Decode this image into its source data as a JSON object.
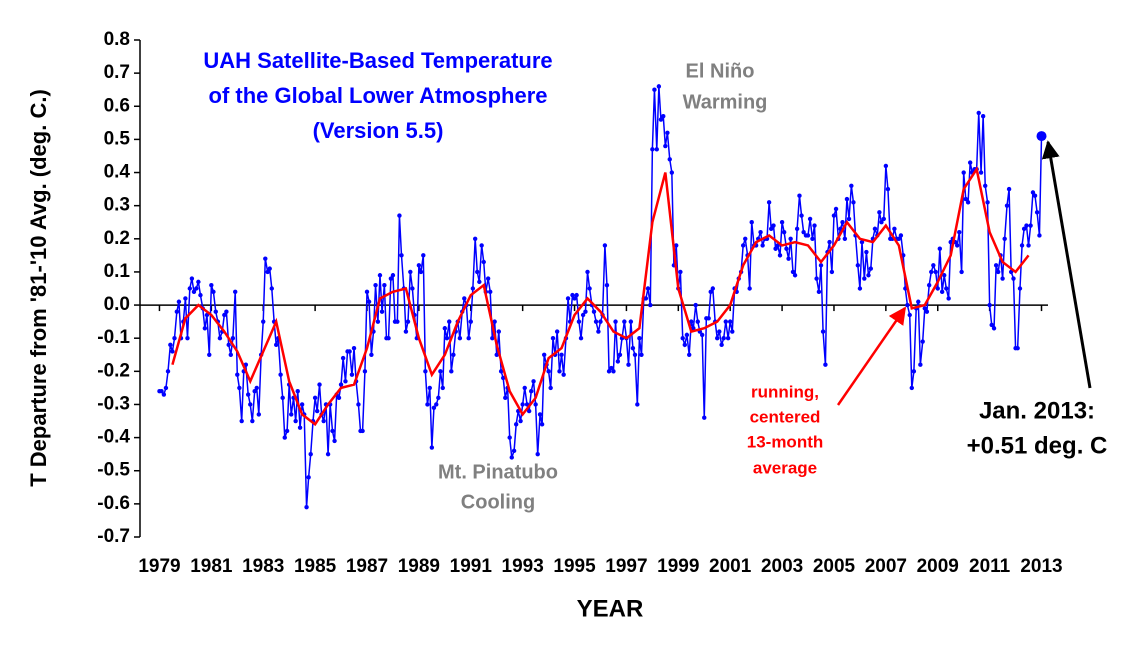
{
  "chart_data": {
    "type": "line",
    "title": [
      "UAH Satellite-Based Temperature",
      "of the Global Lower Atmosphere",
      "(Version 5.5)"
    ],
    "xlabel": "YEAR",
    "ylabel": "T Departure from '81-'10 Avg. (deg. C.)",
    "annotations": {
      "el_nino": [
        "El Niño",
        "Warming"
      ],
      "pinatubo": [
        "Mt. Pinatubo",
        "Cooling"
      ],
      "running": [
        "running,",
        "centered",
        "13-month",
        "average"
      ],
      "latest": [
        "Jan. 2013:",
        "+0.51 deg. C"
      ]
    },
    "xlim": [
      1978.25,
      2013.25
    ],
    "xticks": [
      1979,
      1981,
      1983,
      1985,
      1987,
      1989,
      1991,
      1993,
      1995,
      1997,
      1999,
      2001,
      2003,
      2005,
      2007,
      2009,
      2011,
      2013
    ],
    "ylim": [
      -0.7,
      0.8
    ],
    "yticks": [
      -0.7,
      -0.6,
      -0.5,
      -0.4,
      -0.3,
      -0.2,
      -0.1,
      {
        "value": 0,
        "label": "0.0"
      },
      0.1,
      0.2,
      0.3,
      0.4,
      0.5,
      0.6,
      0.7,
      0.8
    ],
    "series": [
      {
        "name": "monthly",
        "color": "#0000ff",
        "x": [
          1979,
          1979.08,
          1979.17,
          1979.25,
          1979.33,
          1979.42,
          1979.5,
          1979.58,
          1979.67,
          1979.75,
          1979.83,
          1979.92,
          1980,
          1980.08,
          1980.17,
          1980.25,
          1980.33,
          1980.42,
          1980.5,
          1980.58,
          1980.67,
          1980.75,
          1980.83,
          1980.92,
          1981,
          1981.08,
          1981.17,
          1981.25,
          1981.33,
          1981.42,
          1981.5,
          1981.58,
          1981.67,
          1981.75,
          1981.83,
          1981.92,
          1982,
          1982.08,
          1982.17,
          1982.25,
          1982.33,
          1982.42,
          1982.5,
          1982.58,
          1982.67,
          1982.75,
          1982.83,
          1982.92,
          1983,
          1983.08,
          1983.17,
          1983.25,
          1983.33,
          1983.42,
          1983.5,
          1983.58,
          1983.67,
          1983.75,
          1983.83,
          1983.92,
          1984,
          1984.08,
          1984.17,
          1984.25,
          1984.33,
          1984.42,
          1984.5,
          1984.58,
          1984.67,
          1984.75,
          1984.83,
          1984.92,
          1985,
          1985.08,
          1985.17,
          1985.25,
          1985.33,
          1985.42,
          1985.5,
          1985.58,
          1985.67,
          1985.75,
          1985.83,
          1985.92,
          1986,
          1986.08,
          1986.17,
          1986.25,
          1986.33,
          1986.42,
          1986.5,
          1986.58,
          1986.67,
          1986.75,
          1986.83,
          1986.92,
          1987,
          1987.08,
          1987.17,
          1987.25,
          1987.33,
          1987.42,
          1987.5,
          1987.58,
          1987.67,
          1987.75,
          1987.83,
          1987.92,
          1988,
          1988.08,
          1988.17,
          1988.25,
          1988.33,
          1988.42,
          1988.5,
          1988.58,
          1988.67,
          1988.75,
          1988.83,
          1988.92,
          1989,
          1989.08,
          1989.17,
          1989.25,
          1989.33,
          1989.42,
          1989.5,
          1989.58,
          1989.67,
          1989.75,
          1989.83,
          1989.92,
          1990,
          1990.08,
          1990.17,
          1990.25,
          1990.33,
          1990.42,
          1990.5,
          1990.58,
          1990.67,
          1990.75,
          1990.83,
          1990.92,
          1991,
          1991.08,
          1991.17,
          1991.25,
          1991.33,
          1991.42,
          1991.5,
          1991.58,
          1991.67,
          1991.75,
          1991.83,
          1991.92,
          1992,
          1992.08,
          1992.17,
          1992.25,
          1992.33,
          1992.42,
          1992.5,
          1992.58,
          1992.67,
          1992.75,
          1992.83,
          1992.92,
          1993,
          1993.08,
          1993.17,
          1993.25,
          1993.33,
          1993.42,
          1993.5,
          1993.58,
          1993.67,
          1993.75,
          1993.83,
          1993.92,
          1994,
          1994.08,
          1994.17,
          1994.25,
          1994.33,
          1994.42,
          1994.5,
          1994.58,
          1994.67,
          1994.75,
          1994.83,
          1994.92,
          1995,
          1995.08,
          1995.17,
          1995.25,
          1995.33,
          1995.42,
          1995.5,
          1995.58,
          1995.67,
          1995.75,
          1995.83,
          1995.92,
          1996,
          1996.08,
          1996.17,
          1996.25,
          1996.33,
          1996.42,
          1996.5,
          1996.58,
          1996.67,
          1996.75,
          1996.83,
          1996.92,
          1997,
          1997.08,
          1997.17,
          1997.25,
          1997.33,
          1997.42,
          1997.5,
          1997.58,
          1997.67,
          1997.75,
          1997.83,
          1997.92,
          1998,
          1998.08,
          1998.17,
          1998.25,
          1998.33,
          1998.42,
          1998.5,
          1998.58,
          1998.67,
          1998.75,
          1998.83,
          1998.92,
          1999,
          1999.08,
          1999.17,
          1999.25,
          1999.33,
          1999.42,
          1999.5,
          1999.58,
          1999.67,
          1999.75,
          1999.83,
          1999.92,
          2000,
          2000.08,
          2000.17,
          2000.25,
          2000.33,
          2000.42,
          2000.5,
          2000.58,
          2000.67,
          2000.75,
          2000.83,
          2000.92,
          2001,
          2001.08,
          2001.17,
          2001.25,
          2001.33,
          2001.42,
          2001.5,
          2001.58,
          2001.67,
          2001.75,
          2001.83,
          2001.92,
          2002,
          2002.08,
          2002.17,
          2002.25,
          2002.33,
          2002.42,
          2002.5,
          2002.58,
          2002.67,
          2002.75,
          2002.83,
          2002.92,
          2003,
          2003.08,
          2003.17,
          2003.25,
          2003.33,
          2003.42,
          2003.5,
          2003.58,
          2003.67,
          2003.75,
          2003.83,
          2003.92,
          2004,
          2004.08,
          2004.17,
          2004.25,
          2004.33,
          2004.42,
          2004.5,
          2004.58,
          2004.67,
          2004.75,
          2004.83,
          2004.92,
          2005,
          2005.08,
          2005.17,
          2005.25,
          2005.33,
          2005.42,
          2005.5,
          2005.58,
          2005.67,
          2005.75,
          2005.83,
          2005.92,
          2006,
          2006.08,
          2006.17,
          2006.25,
          2006.33,
          2006.42,
          2006.5,
          2006.58,
          2006.67,
          2006.75,
          2006.83,
          2006.92,
          2007,
          2007.08,
          2007.17,
          2007.25,
          2007.33,
          2007.42,
          2007.5,
          2007.58,
          2007.67,
          2007.75,
          2007.83,
          2007.92,
          2008,
          2008.08,
          2008.17,
          2008.25,
          2008.33,
          2008.42,
          2008.5,
          2008.58,
          2008.67,
          2008.75,
          2008.83,
          2008.92,
          2009,
          2009.08,
          2009.17,
          2009.25,
          2009.33,
          2009.42,
          2009.5,
          2009.58,
          2009.67,
          2009.75,
          2009.83,
          2009.92,
          2010,
          2010.08,
          2010.17,
          2010.25,
          2010.33,
          2010.42,
          2010.5,
          2010.58,
          2010.67,
          2010.75,
          2010.83,
          2010.92,
          2011,
          2011.08,
          2011.17,
          2011.25,
          2011.33,
          2011.42,
          2011.5,
          2011.58,
          2011.67,
          2011.75,
          2011.83,
          2011.92,
          2012,
          2012.08,
          2012.17,
          2012.25,
          2012.33,
          2012.42,
          2012.5,
          2012.58,
          2012.67,
          2012.75,
          2012.83,
          2012.92,
          2013
        ],
        "values": [
          -0.26,
          -0.26,
          -0.27,
          -0.25,
          -0.2,
          -0.12,
          -0.14,
          -0.1,
          -0.02,
          0.01,
          -0.1,
          -0.05,
          0.02,
          -0.1,
          0.05,
          0.08,
          0.04,
          0.05,
          0.07,
          0.03,
          -0.01,
          -0.07,
          -0.03,
          -0.15,
          0.06,
          0.04,
          -0.02,
          -0.05,
          -0.1,
          -0.08,
          -0.03,
          -0.02,
          -0.12,
          -0.15,
          -0.1,
          0.04,
          -0.21,
          -0.25,
          -0.35,
          -0.2,
          -0.18,
          -0.27,
          -0.3,
          -0.35,
          -0.26,
          -0.25,
          -0.33,
          -0.15,
          -0.05,
          0.14,
          0.1,
          0.11,
          0.05,
          -0.05,
          -0.12,
          -0.1,
          -0.21,
          -0.28,
          -0.4,
          -0.38,
          -0.24,
          -0.33,
          -0.28,
          -0.35,
          -0.26,
          -0.37,
          -0.3,
          -0.33,
          -0.61,
          -0.52,
          -0.45,
          -0.35,
          -0.28,
          -0.32,
          -0.24,
          -0.33,
          -0.35,
          -0.3,
          -0.45,
          -0.3,
          -0.38,
          -0.41,
          -0.27,
          -0.28,
          -0.24,
          -0.16,
          -0.23,
          -0.14,
          -0.14,
          -0.21,
          -0.13,
          -0.23,
          -0.3,
          -0.38,
          -0.38,
          -0.2,
          0.04,
          0.01,
          -0.15,
          -0.08,
          0.06,
          -0.05,
          0.09,
          -0.02,
          0.06,
          -0.1,
          -0.1,
          0.08,
          0.09,
          -0.05,
          -0.05,
          0.27,
          0.15,
          0.05,
          -0.08,
          -0.05,
          0.1,
          0.05,
          -0.03,
          -0.1,
          0.12,
          0.1,
          0.15,
          -0.2,
          -0.3,
          -0.25,
          -0.43,
          -0.31,
          -0.3,
          -0.28,
          -0.2,
          -0.25,
          -0.07,
          -0.1,
          -0.05,
          -0.2,
          -0.15,
          -0.08,
          -0.05,
          -0.1,
          -0.02,
          0.02,
          0,
          -0.1,
          -0.05,
          0.05,
          0.2,
          0.1,
          0.07,
          0.18,
          0.13,
          0.04,
          0.08,
          0.04,
          -0.1,
          -0.05,
          -0.15,
          -0.08,
          -0.2,
          -0.22,
          -0.28,
          -0.25,
          -0.4,
          -0.46,
          -0.44,
          -0.36,
          -0.32,
          -0.35,
          -0.3,
          -0.25,
          -0.3,
          -0.32,
          -0.26,
          -0.23,
          -0.3,
          -0.45,
          -0.33,
          -0.36,
          -0.15,
          -0.18,
          -0.2,
          -0.25,
          -0.1,
          -0.15,
          -0.08,
          -0.2,
          -0.15,
          -0.21,
          -0.1,
          0.02,
          -0.05,
          0.03,
          0.02,
          0.03,
          -0.05,
          -0.1,
          -0.03,
          -0.02,
          0.1,
          0.05,
          0,
          -0.02,
          -0.05,
          -0.08,
          -0.05,
          -0.03,
          0.18,
          0.06,
          -0.2,
          -0.19,
          -0.2,
          -0.05,
          -0.17,
          -0.15,
          -0.1,
          -0.05,
          -0.1,
          -0.18,
          -0.05,
          -0.13,
          -0.15,
          -0.3,
          -0.1,
          -0.15,
          0.02,
          0.02,
          0.05,
          0,
          0.47,
          0.65,
          0.47,
          0.66,
          0.56,
          0.57,
          0.48,
          0.52,
          0.44,
          0.4,
          0.12,
          0.18,
          0.05,
          0.1,
          -0.1,
          -0.12,
          -0.09,
          -0.15,
          -0.05,
          -0.07,
          0,
          -0.05,
          -0.08,
          -0.09,
          -0.34,
          -0.04,
          -0.04,
          0.04,
          0.05,
          -0.05,
          -0.1,
          -0.08,
          -0.12,
          -0.1,
          -0.05,
          -0.1,
          -0.05,
          -0.08,
          0.05,
          0.04,
          0.08,
          0.1,
          0.18,
          0.2,
          0.15,
          0.05,
          0.25,
          0.18,
          0.18,
          0.2,
          0.22,
          0.18,
          0.2,
          0.2,
          0.31,
          0.23,
          0.24,
          0.17,
          0.18,
          0.15,
          0.25,
          0.22,
          0.17,
          0.14,
          0.2,
          0.1,
          0.09,
          0.23,
          0.33,
          0.27,
          0.22,
          0.21,
          0.21,
          0.26,
          0.2,
          0.24,
          0.08,
          0.04,
          0.12,
          -0.08,
          -0.18,
          0.16,
          0.19,
          0.1,
          0.27,
          0.29,
          0.2,
          0.23,
          0.25,
          0.2,
          0.32,
          0.26,
          0.36,
          0.31,
          0.21,
          0.12,
          0.05,
          0.19,
          0.08,
          0.16,
          0.09,
          0.11,
          0.2,
          0.23,
          0.21,
          0.28,
          0.25,
          0.26,
          0.42,
          0.35,
          0.2,
          0.2,
          0.23,
          0.2,
          0.2,
          0.21,
          0.15,
          0.05,
          0,
          -0.03,
          -0.25,
          -0.2,
          -0.01,
          0.01,
          -0.18,
          -0.11,
          -0.01,
          -0.02,
          0.06,
          0.1,
          0.12,
          0.1,
          0.05,
          0.17,
          0.04,
          0.09,
          0.05,
          0.02,
          0.19,
          0.2,
          0.19,
          0.18,
          0.22,
          0.1,
          0.4,
          0.32,
          0.31,
          0.43,
          0.4,
          0.41,
          0.41,
          0.58,
          0.4,
          0.57,
          0.36,
          0.31,
          0,
          -0.06,
          -0.07,
          0.12,
          0.1,
          0.15,
          0.08,
          0.2,
          0.3,
          0.35,
          0.1,
          0.08,
          -0.13,
          -0.13,
          0.05,
          0.18,
          0.23,
          0.24,
          0.18,
          0.24,
          0.34,
          0.33,
          0.28,
          0.21,
          0.51
        ]
      },
      {
        "name": "running, centered 13-month average",
        "color": "#ff0000",
        "x": [
          1979.5,
          1980,
          1980.5,
          1981,
          1981.5,
          1982,
          1982.5,
          1983,
          1983.5,
          1984,
          1984.5,
          1985,
          1985.5,
          1986,
          1986.5,
          1987,
          1987.5,
          1988,
          1988.5,
          1989,
          1989.5,
          1990,
          1990.5,
          1991,
          1991.5,
          1992,
          1992.5,
          1993,
          1993.5,
          1994,
          1994.5,
          1995,
          1995.5,
          1996,
          1996.5,
          1997,
          1997.5,
          1998,
          1998.5,
          1999,
          1999.5,
          2000,
          2000.5,
          2001,
          2001.5,
          2002,
          2002.5,
          2003,
          2003.5,
          2004,
          2004.5,
          2005,
          2005.5,
          2006,
          2006.5,
          2007,
          2007.5,
          2008,
          2008.5,
          2009,
          2009.5,
          2010,
          2010.5,
          2011,
          2011.5,
          2012,
          2012.5
        ],
        "values": [
          -0.18,
          -0.04,
          0,
          -0.03,
          -0.08,
          -0.14,
          -0.23,
          -0.14,
          -0.05,
          -0.23,
          -0.33,
          -0.36,
          -0.3,
          -0.25,
          -0.24,
          -0.13,
          0.02,
          0.04,
          0.05,
          -0.1,
          -0.21,
          -0.15,
          -0.05,
          0.03,
          0.06,
          -0.12,
          -0.26,
          -0.33,
          -0.28,
          -0.16,
          -0.13,
          -0.03,
          0.02,
          -0.02,
          -0.08,
          -0.1,
          -0.07,
          0.25,
          0.4,
          0.05,
          -0.08,
          -0.07,
          -0.05,
          0,
          0.12,
          0.19,
          0.21,
          0.18,
          0.19,
          0.18,
          0.13,
          0.18,
          0.25,
          0.2,
          0.19,
          0.24,
          0.18,
          -0.01,
          0,
          0.07,
          0.15,
          0.35,
          0.41,
          0.22,
          0.13,
          0.1,
          0.15
        ]
      }
    ]
  }
}
